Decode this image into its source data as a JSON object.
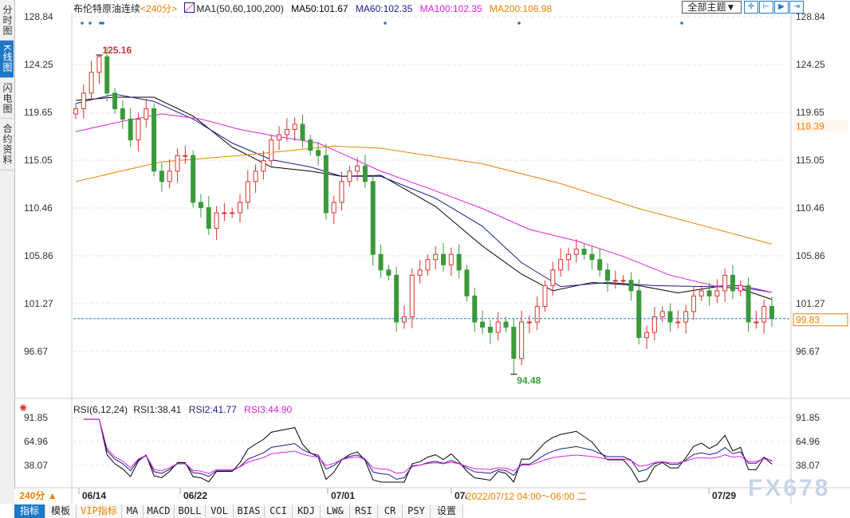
{
  "sidebar": {
    "tabs": [
      {
        "label": "分时图"
      },
      {
        "label": "K线图",
        "selected": true
      },
      {
        "label": "闪电图"
      },
      {
        "label": "合约资料"
      }
    ]
  },
  "header": {
    "title": "布伦特原油连续",
    "period": "<240分>",
    "ma_label": "MA1(50,60,100,200)",
    "ma50": "MA50:101.67",
    "ma60": "MA60:102.35",
    "ma100": "MA100:102.35",
    "ma200": "MA200:106.98",
    "theme_select": "全部主题▼"
  },
  "toolbar_icons": [
    "crosshair-icon",
    "fit-range-icon",
    "play-forward-icon",
    "jump-end-icon"
  ],
  "colors": {
    "up": "#e03030",
    "down": "#3a9a3a",
    "ma50": "#000000",
    "ma60": "#1a1a8c",
    "ma100": "#e020e0",
    "ma200": "#f08000",
    "accent": "#1e78c8"
  },
  "chart_data": [
    {
      "type": "candlestick",
      "yaxis_ticks": [
        "128.84",
        "124.25",
        "119.65",
        "115.05",
        "110.46",
        "105.86",
        "101.27",
        "96.67"
      ],
      "ylim": [
        96.67,
        128.84
      ],
      "x_ticks": [
        "06/14",
        "06/22",
        "07/01",
        "07/",
        "07/29"
      ],
      "close": [
        120,
        121.5,
        123.5,
        125,
        121.5,
        120,
        119,
        117,
        119,
        120,
        114,
        113,
        114,
        115.5,
        115.5,
        111,
        110.5,
        108.5,
        110,
        110,
        110,
        111,
        113,
        114,
        115,
        117,
        117.5,
        118,
        118.5,
        117,
        116,
        115.5,
        110,
        111,
        113,
        114,
        114.5,
        113,
        106,
        104.5,
        104,
        99.5,
        100,
        104,
        104.5,
        105.5,
        106,
        105,
        106,
        104.5,
        102,
        99.5,
        99,
        98.5,
        99.5,
        99,
        96,
        99.5,
        99.5,
        101,
        103,
        104.5,
        105.5,
        106,
        106.5,
        106,
        105.5,
        104.5,
        103.5,
        103.5,
        103.5,
        102.5,
        98,
        98.5,
        100,
        100.5,
        99.5,
        99.5,
        100.5,
        102,
        102.5,
        102,
        102.5,
        104,
        102.5,
        103,
        99.5,
        99.5,
        101,
        99.83
      ],
      "high_label": "125.16",
      "high_index": 3,
      "low_label": "94.48",
      "low_index": 56,
      "last_price": "99.83",
      "marker_price": "118.39",
      "ma": {
        "ma50": [
          [
            0,
            120.8
          ],
          [
            5,
            121.1
          ],
          [
            10,
            121.1
          ],
          [
            15,
            119.3
          ],
          [
            20,
            116.3
          ],
          [
            25,
            114.4
          ],
          [
            30,
            114
          ],
          [
            34,
            113.5
          ],
          [
            39,
            113.6
          ],
          [
            46,
            110.6
          ],
          [
            52,
            106.8
          ],
          [
            57,
            104.1
          ],
          [
            61,
            102.5
          ],
          [
            66,
            103.3
          ],
          [
            72,
            103
          ],
          [
            77,
            102.3
          ],
          [
            82,
            102.9
          ],
          [
            85,
            102.7
          ],
          [
            89,
            101.67
          ]
        ],
        "ma60": [
          [
            0,
            120.5
          ],
          [
            5,
            121.4
          ],
          [
            10,
            120.7
          ],
          [
            15,
            119
          ],
          [
            20,
            116.7
          ],
          [
            25,
            115.1
          ],
          [
            30,
            114.4
          ],
          [
            34,
            113.5
          ],
          [
            39,
            113.5
          ],
          [
            46,
            111.4
          ],
          [
            52,
            108.7
          ],
          [
            57,
            105.2
          ],
          [
            62,
            102.9
          ],
          [
            68,
            103.3
          ],
          [
            74,
            103
          ],
          [
            80,
            102.9
          ],
          [
            85,
            103
          ],
          [
            89,
            102.35
          ]
        ],
        "ma100": [
          [
            0,
            117.8
          ],
          [
            6,
            118.8
          ],
          [
            11,
            119.5
          ],
          [
            16,
            119
          ],
          [
            21,
            118
          ],
          [
            26,
            117.3
          ],
          [
            31,
            116.7
          ],
          [
            34,
            115.7
          ],
          [
            39,
            114
          ],
          [
            46,
            112.1
          ],
          [
            52,
            110.4
          ],
          [
            58,
            108.4
          ],
          [
            64,
            107.3
          ],
          [
            70,
            105.8
          ],
          [
            76,
            104
          ],
          [
            82,
            102.9
          ],
          [
            86,
            102.7
          ],
          [
            89,
            102.35
          ]
        ],
        "ma200": [
          [
            0,
            113
          ],
          [
            11,
            114.9
          ],
          [
            21,
            115.5
          ],
          [
            33,
            116.4
          ],
          [
            39,
            116.2
          ],
          [
            52,
            114.7
          ],
          [
            62,
            112.8
          ],
          [
            72,
            110.4
          ],
          [
            82,
            108.4
          ],
          [
            89,
            106.98
          ]
        ]
      }
    },
    {
      "type": "line",
      "title": "RSI(6,12,24)",
      "series": [
        {
          "name": "RSI1:38.41"
        },
        {
          "name": "RSI2:41.77"
        },
        {
          "name": "RSI3:44.90"
        }
      ],
      "yaxis_ticks": [
        "91.85",
        "64.96",
        "38.07"
      ],
      "ylim": [
        38.07,
        91.85
      ]
    }
  ],
  "footer": {
    "period_button": "240分 ▲",
    "crosshair_info": "2022/07/12 04:00～06:00 二",
    "watermark": "FX678",
    "tabs": [
      "指标",
      "模板",
      "VIP指标",
      "MA",
      "MACD",
      "BOLL",
      "VOL",
      "BIAS",
      "CCI",
      "KDJ",
      "LW&",
      "RSI",
      "CR",
      "PSY",
      "设置"
    ]
  }
}
